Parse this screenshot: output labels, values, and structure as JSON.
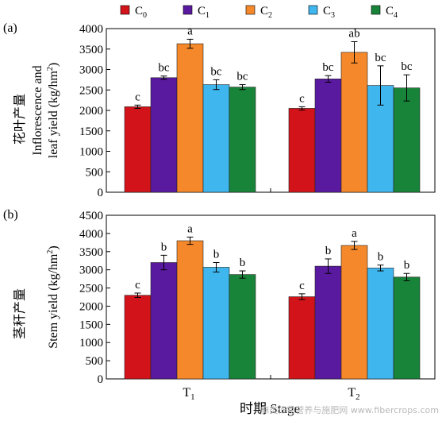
{
  "legend": [
    {
      "label": "C",
      "sub": "0",
      "color": "#d2141a"
    },
    {
      "label": "C",
      "sub": "1",
      "color": "#5a1aa0"
    },
    {
      "label": "C",
      "sub": "2",
      "color": "#f5882a"
    },
    {
      "label": "C",
      "sub": "3",
      "color": "#3fb6ee"
    },
    {
      "label": "C",
      "sub": "4",
      "color": "#18843a"
    }
  ],
  "x_axis": {
    "label": "时期 Stage",
    "groups": [
      {
        "label": "T",
        "sub": "1"
      },
      {
        "label": "T",
        "sub": "2"
      }
    ]
  },
  "chart_data": [
    {
      "type": "bar",
      "panel_label": "(a)",
      "ylabel_cn": "花叶产量",
      "ylabel_en_lines": [
        "Inflorescence and",
        "leaf yield (kg/hm",
        "2",
        ")"
      ],
      "ylim": [
        0,
        4000
      ],
      "yticks": [
        0,
        500,
        1000,
        1500,
        2000,
        2500,
        3000,
        3500,
        4000
      ],
      "categories": [
        "T1",
        "T2"
      ],
      "series": [
        {
          "name": "C0",
          "values": [
            2090,
            2050
          ],
          "errors": [
            40,
            40
          ],
          "letters": [
            "c",
            "c"
          ]
        },
        {
          "name": "C1",
          "values": [
            2800,
            2770
          ],
          "errors": [
            40,
            80
          ],
          "letters": [
            "bc",
            "bc"
          ]
        },
        {
          "name": "C2",
          "values": [
            3630,
            3420
          ],
          "errors": [
            110,
            260
          ],
          "letters": [
            "a",
            "ab"
          ]
        },
        {
          "name": "C3",
          "values": [
            2630,
            2610
          ],
          "errors": [
            120,
            480
          ],
          "letters": [
            "bc",
            "bc"
          ]
        },
        {
          "name": "C4",
          "values": [
            2570,
            2550
          ],
          "errors": [
            60,
            320
          ],
          "letters": [
            "bc",
            "bc"
          ]
        }
      ]
    },
    {
      "type": "bar",
      "panel_label": "(b)",
      "ylabel_cn": "茎秆产量",
      "ylabel_en_lines": [
        "Stem yield (kg/hm",
        "2",
        ")"
      ],
      "ylim": [
        0,
        4500
      ],
      "yticks": [
        0,
        500,
        1000,
        1500,
        2000,
        2500,
        3000,
        3500,
        4000,
        4500
      ],
      "categories": [
        "T1",
        "T2"
      ],
      "series": [
        {
          "name": "C0",
          "values": [
            2300,
            2260
          ],
          "errors": [
            60,
            80
          ],
          "letters": [
            "c",
            "c"
          ]
        },
        {
          "name": "C1",
          "values": [
            3200,
            3100
          ],
          "errors": [
            200,
            200
          ],
          "letters": [
            "b",
            "b"
          ]
        },
        {
          "name": "C2",
          "values": [
            3800,
            3670
          ],
          "errors": [
            100,
            110
          ],
          "letters": [
            "a",
            "a"
          ]
        },
        {
          "name": "C3",
          "values": [
            3070,
            3050
          ],
          "errors": [
            130,
            80
          ],
          "letters": [
            "b",
            "b"
          ]
        },
        {
          "name": "C4",
          "values": [
            2870,
            2800
          ],
          "errors": [
            100,
            100
          ],
          "letters": [
            "b",
            "b"
          ]
        }
      ]
    }
  ],
  "watermark": "麻类作物营养与施肥网 www.fibercrops.com"
}
